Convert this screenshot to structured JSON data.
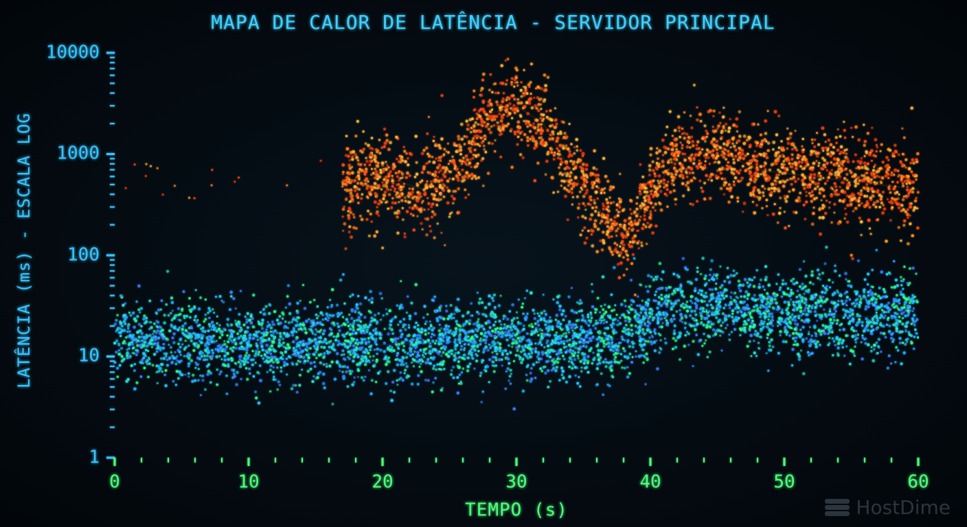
{
  "chart_data": {
    "type": "scatter",
    "title": "MAPA DE CALOR DE LATÊNCIA - SERVIDOR PRINCIPAL",
    "xlabel": "TEMPO (s)",
    "ylabel": "LATÊNCIA (ms) - ESCALA LOG",
    "xlim": [
      0,
      60
    ],
    "ylim": [
      1,
      10000
    ],
    "yscale": "log",
    "x_ticks": [
      "0",
      "10",
      "20",
      "30",
      "40",
      "50",
      "60"
    ],
    "y_ticks": [
      "1",
      "10",
      "100",
      "1000",
      "10000"
    ],
    "grid": false,
    "legend": "none",
    "colors": {
      "low_latency": "#1fa8ff",
      "mid_latency": "#2dff8c",
      "high_latency": "#ff7a1a",
      "peak_latency": "#ffb43a",
      "x_axis": "#4dff7a",
      "y_axis": "#38c4ff"
    },
    "series": [
      {
        "points": [
          {
            "x": 0,
            "y": 15
          },
          {
            "x": 5,
            "y": 14
          },
          {
            "x": 10,
            "y": 13
          },
          {
            "x": 15,
            "y": 14
          },
          {
            "x": 20,
            "y": 13
          },
          {
            "x": 25,
            "y": 14
          },
          {
            "x": 30,
            "y": 15
          },
          {
            "x": 35,
            "y": 14
          },
          {
            "x": 38,
            "y": 15
          },
          {
            "x": 41,
            "y": 28
          },
          {
            "x": 45,
            "y": 30
          },
          {
            "x": 50,
            "y": 27
          },
          {
            "x": 55,
            "y": 25
          },
          {
            "x": 60,
            "y": 24
          }
        ]
      },
      {
        "points": [
          {
            "x": 17,
            "y": 500
          },
          {
            "x": 20,
            "y": 600
          },
          {
            "x": 23,
            "y": 450
          },
          {
            "x": 26,
            "y": 800
          },
          {
            "x": 28,
            "y": 2500
          },
          {
            "x": 30,
            "y": 3000
          },
          {
            "x": 32,
            "y": 2000
          },
          {
            "x": 34,
            "y": 700
          },
          {
            "x": 36,
            "y": 300
          },
          {
            "x": 38,
            "y": 150
          },
          {
            "x": 40,
            "y": 400
          },
          {
            "x": 42,
            "y": 900
          },
          {
            "x": 45,
            "y": 1100
          },
          {
            "x": 48,
            "y": 700
          },
          {
            "x": 52,
            "y": 600
          },
          {
            "x": 57,
            "y": 500
          },
          {
            "x": 60,
            "y": 450
          }
        ]
      }
    ]
  },
  "watermark": {
    "text": "HostDime",
    "icon": "server-stack-icon"
  }
}
